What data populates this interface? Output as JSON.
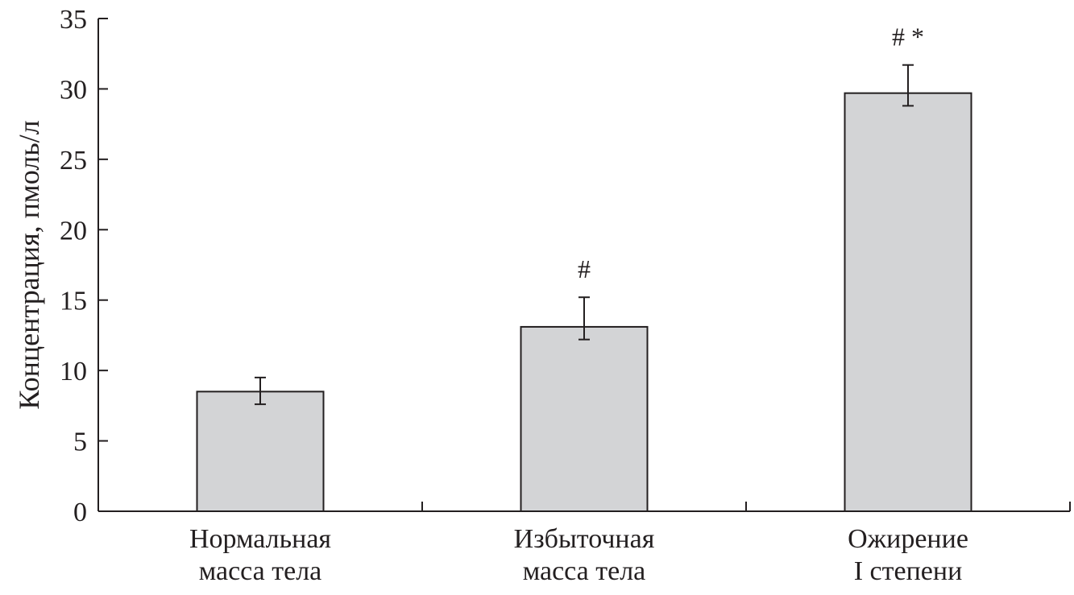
{
  "chart_data": {
    "type": "bar",
    "title": "",
    "xlabel": "",
    "ylabel": "Концентрация, пмоль/л",
    "ylim": [
      0,
      35
    ],
    "yticks": [
      0,
      5,
      10,
      15,
      20,
      25,
      30,
      35
    ],
    "grid": false,
    "legend": "none",
    "categories": [
      [
        "Нормальная",
        "масса тела"
      ],
      [
        "Избыточная",
        "масса тела"
      ],
      [
        "Ожирение",
        "I степени"
      ]
    ],
    "values": [
      8.5,
      13.1,
      29.7
    ],
    "error_low": [
      7.6,
      12.2,
      28.8
    ],
    "error_high": [
      9.5,
      15.2,
      31.7
    ],
    "annotations": [
      "",
      "#",
      "# *"
    ],
    "colors": {
      "bar_fill": "#d3d4d6",
      "stroke": "#231f20",
      "background": "#ffffff"
    }
  }
}
